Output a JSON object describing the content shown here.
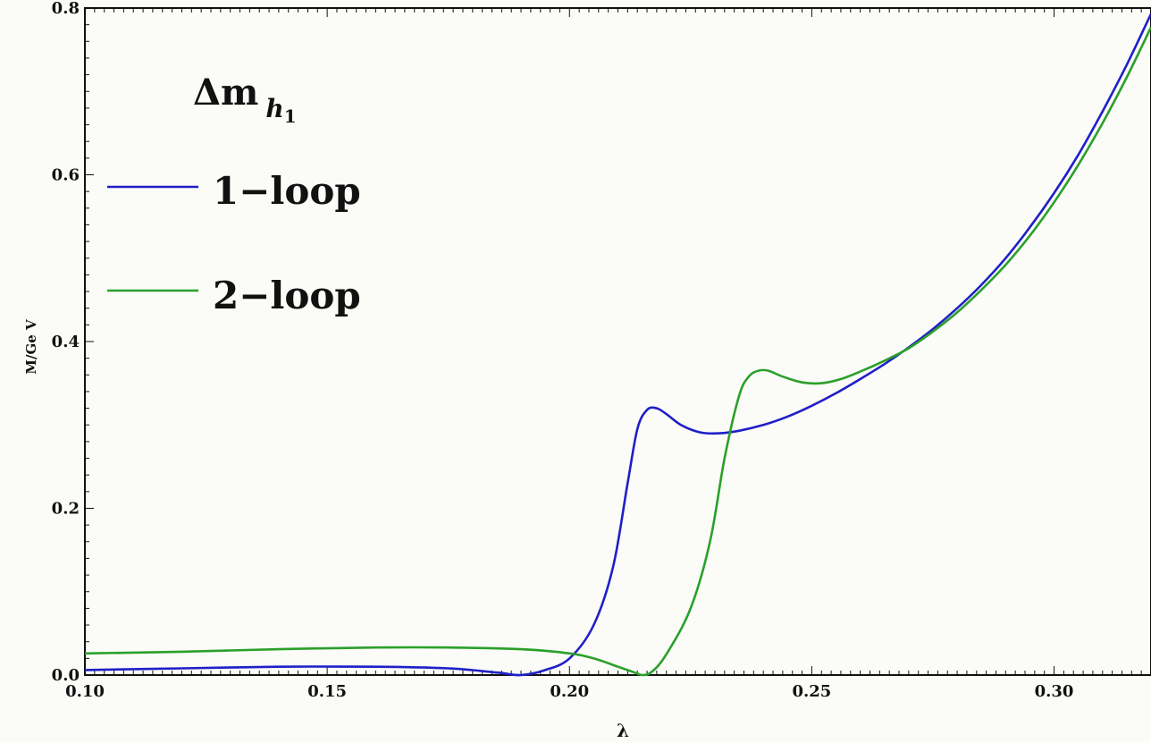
{
  "chart_data": {
    "type": "line",
    "xlabel": "λ",
    "ylabel": "M/Ge V",
    "xlim": [
      0.1,
      0.32
    ],
    "ylim": [
      0.0,
      0.8
    ],
    "xticks": [
      "0.10",
      "0.15",
      "0.20",
      "0.25",
      "0.30"
    ],
    "yticks": [
      "0.0",
      "0.2",
      "0.4",
      "0.6",
      "0.8"
    ],
    "legend": {
      "title_main": "Δm",
      "title_sub": "h",
      "title_subsub": "1",
      "placement": "top-left"
    },
    "grid": false,
    "series": [
      {
        "name": "1−loop",
        "color": "#1f1fc8",
        "x": [
          0.1,
          0.12,
          0.14,
          0.16,
          0.175,
          0.185,
          0.19,
          0.195,
          0.2,
          0.205,
          0.209,
          0.212,
          0.214,
          0.216,
          0.218,
          0.22,
          0.223,
          0.227,
          0.231,
          0.235,
          0.24,
          0.245,
          0.25,
          0.255,
          0.26,
          0.265,
          0.27,
          0.275,
          0.28,
          0.285,
          0.29,
          0.295,
          0.3,
          0.305,
          0.31,
          0.315,
          0.32
        ],
        "y": [
          0.006,
          0.008,
          0.01,
          0.01,
          0.008,
          0.003,
          0.0,
          0.006,
          0.02,
          0.06,
          0.13,
          0.23,
          0.295,
          0.318,
          0.32,
          0.313,
          0.3,
          0.291,
          0.29,
          0.293,
          0.3,
          0.31,
          0.323,
          0.338,
          0.355,
          0.373,
          0.393,
          0.415,
          0.44,
          0.468,
          0.5,
          0.537,
          0.578,
          0.624,
          0.676,
          0.732,
          0.793
        ]
      },
      {
        "name": "2−loop",
        "color": "#2aa02a",
        "x": [
          0.1,
          0.12,
          0.14,
          0.16,
          0.175,
          0.19,
          0.2,
          0.205,
          0.21,
          0.213,
          0.215,
          0.217,
          0.22,
          0.225,
          0.229,
          0.232,
          0.235,
          0.237,
          0.239,
          0.241,
          0.244,
          0.248,
          0.252,
          0.256,
          0.26,
          0.265,
          0.27,
          0.275,
          0.28,
          0.285,
          0.29,
          0.295,
          0.3,
          0.305,
          0.31,
          0.315,
          0.32
        ],
        "y": [
          0.026,
          0.028,
          0.031,
          0.033,
          0.033,
          0.031,
          0.026,
          0.02,
          0.01,
          0.004,
          0.0,
          0.004,
          0.025,
          0.08,
          0.16,
          0.26,
          0.335,
          0.358,
          0.365,
          0.365,
          0.358,
          0.351,
          0.35,
          0.355,
          0.364,
          0.377,
          0.392,
          0.412,
          0.435,
          0.462,
          0.492,
          0.527,
          0.567,
          0.612,
          0.662,
          0.717,
          0.777
        ]
      }
    ]
  }
}
